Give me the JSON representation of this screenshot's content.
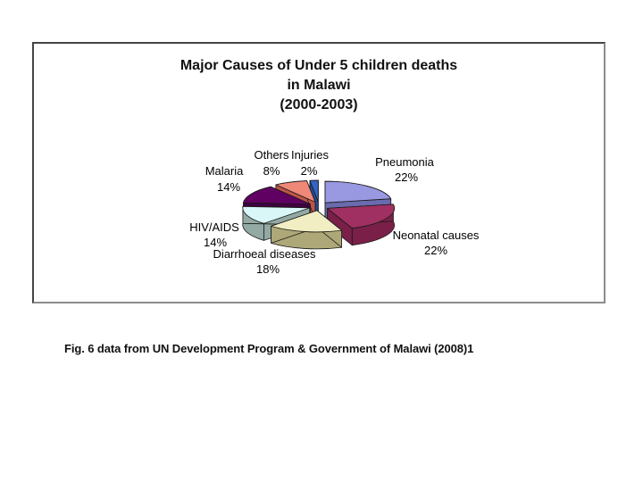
{
  "figure_box": {
    "border_dark": "#454545",
    "border_light": "#8c8c8c"
  },
  "chart_data": {
    "type": "pie",
    "three_d": true,
    "exploded": true,
    "direction": "clockwise",
    "start_angle_deg": 0,
    "title_lines": {
      "line1": "Major Causes of Under 5 children deaths",
      "line2": "in Malawi",
      "line3": "(2000-2003)"
    },
    "series": [
      {
        "label": "Pneumonia",
        "value": 22,
        "pct_label": "22%",
        "color_top": "#9999e1",
        "color_side": "#6a6aae"
      },
      {
        "label": "Neonatal causes",
        "value": 22,
        "pct_label": "22%",
        "color_top": "#a03061",
        "color_side": "#7a2048"
      },
      {
        "label": "Diarrhoeal diseases",
        "value": 18,
        "pct_label": "18%",
        "color_top": "#f0eec2",
        "color_side": "#aea878"
      },
      {
        "label": "HIV/AIDS",
        "value": 14,
        "pct_label": "14%",
        "color_top": "#d9f7f7",
        "color_side": "#93a9a3"
      },
      {
        "label": "Malaria",
        "value": 14,
        "pct_label": "14%",
        "color_top": "#610063",
        "color_side": "#400042"
      },
      {
        "label": "Others",
        "value": 8,
        "pct_label": "8%",
        "color_top": "#ef8877",
        "color_side": "#be5548"
      },
      {
        "label": "Injuries",
        "value": 2,
        "pct_label": "2%",
        "color_top": "#3366c4",
        "color_side": "#234b92"
      }
    ],
    "outline_color": "#1a1a1a"
  },
  "caption": {
    "prefix": "Fig. 6",
    "rest": " data from UN Development Program & Government of Malawi (2008)1"
  }
}
